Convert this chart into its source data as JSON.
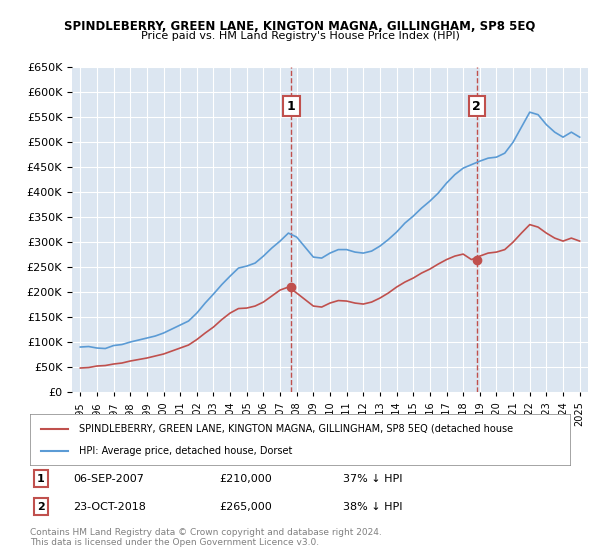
{
  "title": "SPINDLEBERRY, GREEN LANE, KINGTON MAGNA, GILLINGHAM, SP8 5EQ",
  "subtitle": "Price paid vs. HM Land Registry's House Price Index (HPI)",
  "legend_line1": "SPINDLEBERRY, GREEN LANE, KINGTON MAGNA, GILLINGHAM, SP8 5EQ (detached house",
  "legend_line2": "HPI: Average price, detached house, Dorset",
  "footnote1": "Contains HM Land Registry data © Crown copyright and database right 2024.",
  "footnote2": "This data is licensed under the Open Government Licence v3.0.",
  "annotation1_label": "1",
  "annotation1_date": "06-SEP-2007",
  "annotation1_price": "£210,000",
  "annotation1_hpi": "37% ↓ HPI",
  "annotation2_label": "2",
  "annotation2_date": "23-OCT-2018",
  "annotation2_price": "£265,000",
  "annotation2_hpi": "38% ↓ HPI",
  "point1_x": 2007.68,
  "point1_y": 210000,
  "point2_x": 2018.81,
  "point2_y": 265000,
  "ylim": [
    0,
    650000
  ],
  "xlim": [
    1994.5,
    2025.5
  ],
  "hpi_color": "#5b9bd5",
  "property_color": "#c0504d",
  "background_color": "#dce6f1",
  "plot_bg_color": "#dce6f1",
  "hpi_years": [
    1995,
    1995.5,
    1996,
    1996.5,
    1997,
    1997.5,
    1998,
    1998.5,
    1999,
    1999.5,
    2000,
    2000.5,
    2001,
    2001.5,
    2002,
    2002.5,
    2003,
    2003.5,
    2004,
    2004.5,
    2005,
    2005.5,
    2006,
    2006.5,
    2007,
    2007.5,
    2008,
    2008.5,
    2009,
    2009.5,
    2010,
    2010.5,
    2011,
    2011.5,
    2012,
    2012.5,
    2013,
    2013.5,
    2014,
    2014.5,
    2015,
    2015.5,
    2016,
    2016.5,
    2017,
    2017.5,
    2018,
    2018.5,
    2019,
    2019.5,
    2020,
    2020.5,
    2021,
    2021.5,
    2022,
    2022.5,
    2023,
    2023.5,
    2024,
    2024.5,
    2025
  ],
  "hpi_values": [
    90000,
    91000,
    88000,
    87000,
    93000,
    95000,
    100000,
    104000,
    108000,
    112000,
    118000,
    126000,
    134000,
    142000,
    158000,
    178000,
    196000,
    215000,
    232000,
    248000,
    252000,
    258000,
    272000,
    288000,
    302000,
    318000,
    310000,
    290000,
    270000,
    268000,
    278000,
    285000,
    285000,
    280000,
    278000,
    282000,
    292000,
    305000,
    320000,
    338000,
    352000,
    368000,
    382000,
    398000,
    418000,
    435000,
    448000,
    455000,
    462000,
    468000,
    470000,
    478000,
    500000,
    530000,
    560000,
    555000,
    535000,
    520000,
    510000,
    520000,
    510000
  ],
  "property_years": [
    1995,
    1995.5,
    1996,
    1996.5,
    1997,
    1997.5,
    1998,
    1998.5,
    1999,
    1999.5,
    2000,
    2000.5,
    2001,
    2001.5,
    2002,
    2002.5,
    2003,
    2003.5,
    2004,
    2004.5,
    2005,
    2005.5,
    2006,
    2006.5,
    2007,
    2007.5,
    2008,
    2008.5,
    2009,
    2009.5,
    2010,
    2010.5,
    2011,
    2011.5,
    2012,
    2012.5,
    2013,
    2013.5,
    2014,
    2014.5,
    2015,
    2015.5,
    2016,
    2016.5,
    2017,
    2017.5,
    2018,
    2018.5,
    2019,
    2019.5,
    2020,
    2020.5,
    2021,
    2021.5,
    2022,
    2022.5,
    2023,
    2023.5,
    2024,
    2024.5,
    2025
  ],
  "property_values": [
    48000,
    49000,
    52000,
    53000,
    56000,
    58000,
    62000,
    65000,
    68000,
    72000,
    76000,
    82000,
    88000,
    94000,
    105000,
    118000,
    130000,
    145000,
    158000,
    167000,
    168000,
    172000,
    180000,
    192000,
    204000,
    210000,
    198000,
    185000,
    172000,
    170000,
    178000,
    183000,
    182000,
    178000,
    176000,
    180000,
    188000,
    198000,
    210000,
    220000,
    228000,
    238000,
    246000,
    256000,
    265000,
    272000,
    276000,
    265000,
    272000,
    278000,
    280000,
    285000,
    300000,
    318000,
    335000,
    330000,
    318000,
    308000,
    302000,
    308000,
    302000
  ]
}
